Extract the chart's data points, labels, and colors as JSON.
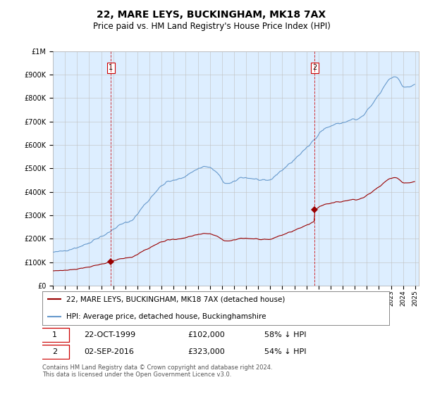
{
  "title": "22, MARE LEYS, BUCKINGHAM, MK18 7AX",
  "subtitle": "Price paid vs. HM Land Registry's House Price Index (HPI)",
  "property_label": "22, MARE LEYS, BUCKINGHAM, MK18 7AX (detached house)",
  "hpi_label": "HPI: Average price, detached house, Buckinghamshire",
  "sale1_date": "22-OCT-1999",
  "sale1_price": 102000,
  "sale1_note": "58% ↓ HPI",
  "sale2_date": "02-SEP-2016",
  "sale2_price": 323000,
  "sale2_note": "54% ↓ HPI",
  "footer": "Contains HM Land Registry data © Crown copyright and database right 2024.\nThis data is licensed under the Open Government Licence v3.0.",
  "property_color": "#990000",
  "hpi_color": "#6699cc",
  "hpi_fill_color": "#ddeeff",
  "vline_color": "#cc0000",
  "background_color": "#ffffff",
  "ylim": [
    0,
    1000000
  ],
  "sale1_x": 1999.81,
  "sale2_x": 2016.67,
  "xmin": 1995.0,
  "xmax": 2025.3
}
